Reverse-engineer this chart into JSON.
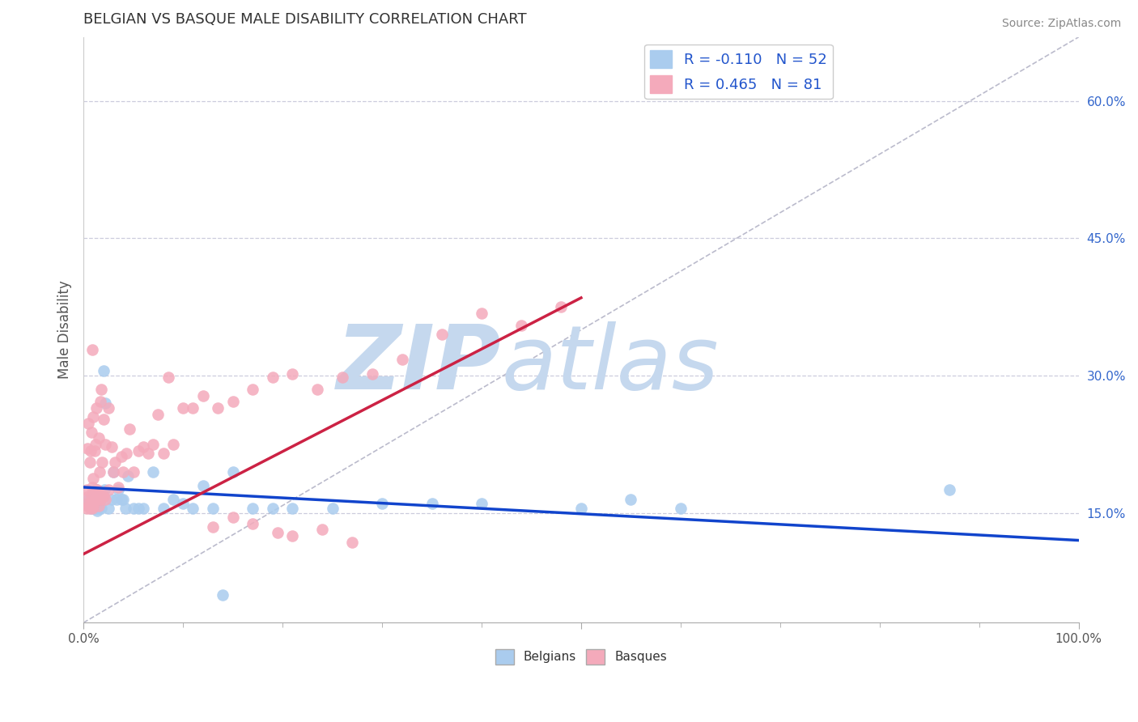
{
  "title": "BELGIAN VS BASQUE MALE DISABILITY CORRELATION CHART",
  "source": "Source: ZipAtlas.com",
  "ylabel": "Male Disability",
  "xlim": [
    0,
    1.0
  ],
  "ylim": [
    0.03,
    0.67
  ],
  "x_ticks_minor": [
    0.1,
    0.2,
    0.3,
    0.4,
    0.5,
    0.6,
    0.7,
    0.8,
    0.9
  ],
  "y_ticks": [
    0.15,
    0.3,
    0.45,
    0.6
  ],
  "y_tick_labels": [
    "15.0%",
    "30.0%",
    "45.0%",
    "60.0%"
  ],
  "belgian_color": "#aaccee",
  "basque_color": "#f4aabb",
  "belgian_line_color": "#1144cc",
  "basque_line_color": "#cc2244",
  "diagonal_color": "#bbbbcc",
  "watermark_zip": "ZIP",
  "watermark_atlas": "atlas",
  "watermark_color_zip": "#c5d8ee",
  "watermark_color_atlas": "#c5d8ee",
  "legend_label_1": "R = -0.110   N = 52",
  "legend_label_2": "R = 0.465   N = 81",
  "belgian_x": [
    0.005,
    0.007,
    0.008,
    0.009,
    0.01,
    0.01,
    0.012,
    0.012,
    0.013,
    0.013,
    0.014,
    0.015,
    0.015,
    0.016,
    0.016,
    0.018,
    0.018,
    0.02,
    0.021,
    0.022,
    0.025,
    0.028,
    0.03,
    0.033,
    0.035,
    0.038,
    0.04,
    0.042,
    0.045,
    0.05,
    0.055,
    0.06,
    0.07,
    0.08,
    0.09,
    0.1,
    0.11,
    0.12,
    0.13,
    0.15,
    0.17,
    0.19,
    0.21,
    0.25,
    0.3,
    0.35,
    0.4,
    0.5,
    0.55,
    0.6,
    0.87,
    0.14
  ],
  "belgian_y": [
    0.165,
    0.155,
    0.16,
    0.17,
    0.155,
    0.165,
    0.16,
    0.155,
    0.175,
    0.158,
    0.152,
    0.162,
    0.155,
    0.168,
    0.158,
    0.165,
    0.155,
    0.305,
    0.175,
    0.27,
    0.155,
    0.165,
    0.195,
    0.165,
    0.175,
    0.165,
    0.165,
    0.155,
    0.19,
    0.155,
    0.155,
    0.155,
    0.195,
    0.155,
    0.165,
    0.16,
    0.155,
    0.18,
    0.155,
    0.195,
    0.155,
    0.155,
    0.155,
    0.155,
    0.16,
    0.16,
    0.16,
    0.155,
    0.165,
    0.155,
    0.175,
    0.06
  ],
  "basque_x": [
    0.003,
    0.003,
    0.004,
    0.004,
    0.005,
    0.005,
    0.005,
    0.006,
    0.006,
    0.007,
    0.007,
    0.008,
    0.008,
    0.009,
    0.009,
    0.009,
    0.01,
    0.01,
    0.01,
    0.011,
    0.011,
    0.012,
    0.012,
    0.013,
    0.013,
    0.014,
    0.015,
    0.015,
    0.016,
    0.016,
    0.017,
    0.017,
    0.018,
    0.018,
    0.019,
    0.02,
    0.02,
    0.022,
    0.022,
    0.025,
    0.025,
    0.028,
    0.03,
    0.032,
    0.035,
    0.038,
    0.04,
    0.043,
    0.046,
    0.05,
    0.055,
    0.06,
    0.065,
    0.07,
    0.075,
    0.08,
    0.085,
    0.09,
    0.1,
    0.11,
    0.12,
    0.135,
    0.15,
    0.17,
    0.19,
    0.21,
    0.235,
    0.26,
    0.29,
    0.32,
    0.36,
    0.4,
    0.44,
    0.48,
    0.13,
    0.15,
    0.17,
    0.195,
    0.21,
    0.24,
    0.27
  ],
  "basque_y": [
    0.155,
    0.175,
    0.16,
    0.22,
    0.158,
    0.168,
    0.248,
    0.155,
    0.205,
    0.158,
    0.218,
    0.168,
    0.238,
    0.155,
    0.178,
    0.328,
    0.158,
    0.188,
    0.255,
    0.165,
    0.218,
    0.165,
    0.225,
    0.175,
    0.265,
    0.175,
    0.158,
    0.232,
    0.168,
    0.195,
    0.272,
    0.165,
    0.168,
    0.285,
    0.205,
    0.168,
    0.252,
    0.165,
    0.225,
    0.175,
    0.265,
    0.222,
    0.195,
    0.205,
    0.178,
    0.212,
    0.195,
    0.215,
    0.242,
    0.195,
    0.218,
    0.222,
    0.215,
    0.225,
    0.258,
    0.215,
    0.298,
    0.225,
    0.265,
    0.265,
    0.278,
    0.265,
    0.272,
    0.285,
    0.298,
    0.302,
    0.285,
    0.298,
    0.302,
    0.318,
    0.345,
    0.368,
    0.355,
    0.375,
    0.135,
    0.145,
    0.138,
    0.128,
    0.125,
    0.132,
    0.118
  ],
  "basque_line_x0": 0.0,
  "basque_line_y0": 0.105,
  "basque_line_x1": 0.5,
  "basque_line_y1": 0.385,
  "belgian_line_x0": 0.0,
  "belgian_line_y0": 0.178,
  "belgian_line_x1": 1.0,
  "belgian_line_y1": 0.12
}
